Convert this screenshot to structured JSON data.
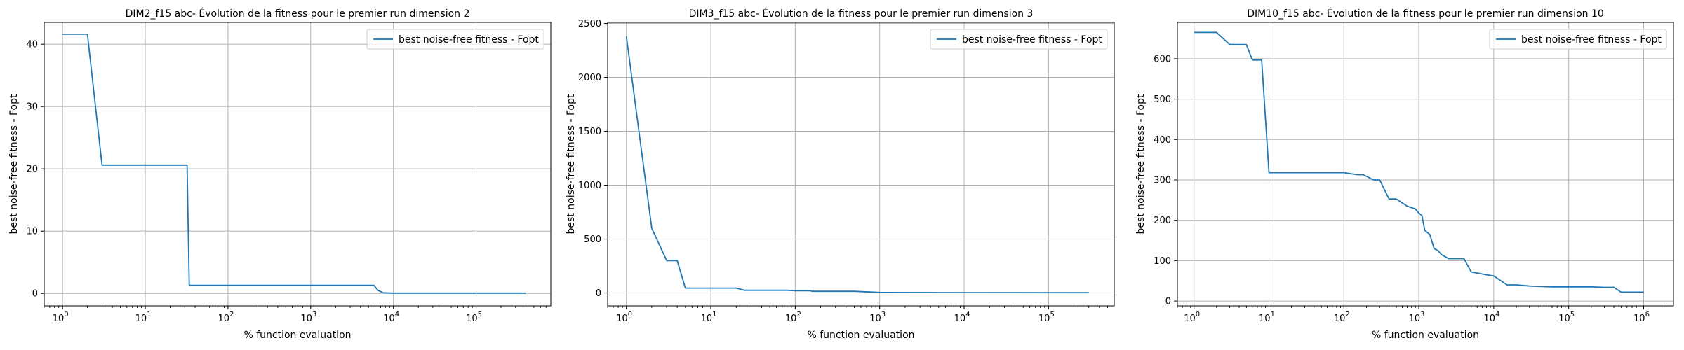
{
  "chart_data": [
    {
      "type": "line",
      "title": "DIM2_f15 abc- Évolution de la fitness pour le premier run dimension 2",
      "xlabel": "% function evaluation",
      "ylabel": "best noise-free fitness - Fopt",
      "xscale": "log",
      "xlim": [
        0.6,
        800000
      ],
      "ylim": [
        -2,
        43.5
      ],
      "yticks": [
        0,
        10,
        20,
        30,
        40
      ],
      "ytick_labels": [
        "0",
        "10",
        "20",
        "30",
        "40"
      ],
      "xticks": [
        1,
        10,
        100,
        1000,
        10000,
        100000
      ],
      "xtick_labels": [
        {
          "base": "10",
          "exp": "0"
        },
        {
          "base": "10",
          "exp": "1"
        },
        {
          "base": "10",
          "exp": "2"
        },
        {
          "base": "10",
          "exp": "3"
        },
        {
          "base": "10",
          "exp": "4"
        },
        {
          "base": "10",
          "exp": "5"
        }
      ],
      "grid": true,
      "legend": "top-right",
      "series": [
        {
          "name": "best noise-free fitness - Fopt",
          "color": "#1f77b4",
          "x": [
            1,
            2,
            3,
            32,
            34,
            5800,
            6500,
            7500,
            10000,
            400000
          ],
          "y": [
            41.6,
            41.6,
            20.6,
            20.6,
            1.3,
            1.3,
            0.5,
            0.1,
            0.05,
            0.05
          ]
        }
      ]
    },
    {
      "type": "line",
      "title": "DIM3_f15 abc- Évolution de la fitness pour le premier run dimension 3",
      "xlabel": "% function evaluation",
      "ylabel": "best noise-free fitness - Fopt",
      "xscale": "log",
      "xlim": [
        0.6,
        600000
      ],
      "ylim": [
        -120,
        2510
      ],
      "yticks": [
        0,
        500,
        1000,
        1500,
        2000,
        2500
      ],
      "ytick_labels": [
        "0",
        "500",
        "1000",
        "1500",
        "2000",
        "2500"
      ],
      "xticks": [
        1,
        10,
        100,
        1000,
        10000,
        100000
      ],
      "xtick_labels": [
        {
          "base": "10",
          "exp": "0"
        },
        {
          "base": "10",
          "exp": "1"
        },
        {
          "base": "10",
          "exp": "2"
        },
        {
          "base": "10",
          "exp": "3"
        },
        {
          "base": "10",
          "exp": "4"
        },
        {
          "base": "10",
          "exp": "5"
        }
      ],
      "grid": true,
      "legend": "top-right",
      "series": [
        {
          "name": "best noise-free fitness - Fopt",
          "color": "#1f77b4",
          "x": [
            1,
            2,
            3,
            4,
            5,
            20,
            25,
            80,
            100,
            150,
            160,
            500,
            800,
            1000,
            10000,
            300000
          ],
          "y": [
            2380,
            600,
            300,
            300,
            45,
            45,
            25,
            25,
            20,
            20,
            15,
            15,
            8,
            5,
            3,
            2
          ]
        }
      ]
    },
    {
      "type": "line",
      "title": "DIM10_f15 abc- Évolution de la fitness pour le premier run dimension 10",
      "xlabel": "% function evaluation",
      "ylabel": "best noise-free fitness - Fopt",
      "xscale": "log",
      "xlim": [
        0.6,
        2500000
      ],
      "ylim": [
        -12,
        690
      ],
      "yticks": [
        0,
        100,
        200,
        300,
        400,
        500,
        600
      ],
      "ytick_labels": [
        "0",
        "100",
        "200",
        "300",
        "400",
        "500",
        "600"
      ],
      "xticks": [
        1,
        10,
        100,
        1000,
        10000,
        100000,
        1000000
      ],
      "xtick_labels": [
        {
          "base": "10",
          "exp": "0"
        },
        {
          "base": "10",
          "exp": "1"
        },
        {
          "base": "10",
          "exp": "2"
        },
        {
          "base": "10",
          "exp": "3"
        },
        {
          "base": "10",
          "exp": "4"
        },
        {
          "base": "10",
          "exp": "5"
        },
        {
          "base": "10",
          "exp": "6"
        }
      ],
      "grid": true,
      "legend": "top-right",
      "series": [
        {
          "name": "best noise-free fitness - Fopt",
          "color": "#1f77b4",
          "x": [
            1,
            2,
            3,
            5,
            6,
            8,
            10,
            50,
            100,
            150,
            180,
            250,
            280,
            300,
            400,
            500,
            700,
            900,
            1000,
            1100,
            1200,
            1400,
            1600,
            1800,
            2000,
            2500,
            4000,
            5000,
            8000,
            10000,
            15000,
            20000,
            30000,
            60000,
            100000,
            200000,
            300000,
            400000,
            500000,
            1000000
          ],
          "y": [
            665,
            665,
            635,
            635,
            597,
            597,
            318,
            318,
            318,
            313,
            313,
            300,
            300,
            300,
            253,
            253,
            235,
            228,
            218,
            212,
            175,
            165,
            130,
            125,
            115,
            105,
            105,
            72,
            65,
            62,
            40,
            40,
            37,
            35,
            35,
            35,
            34,
            34,
            22,
            22
          ]
        }
      ]
    }
  ]
}
